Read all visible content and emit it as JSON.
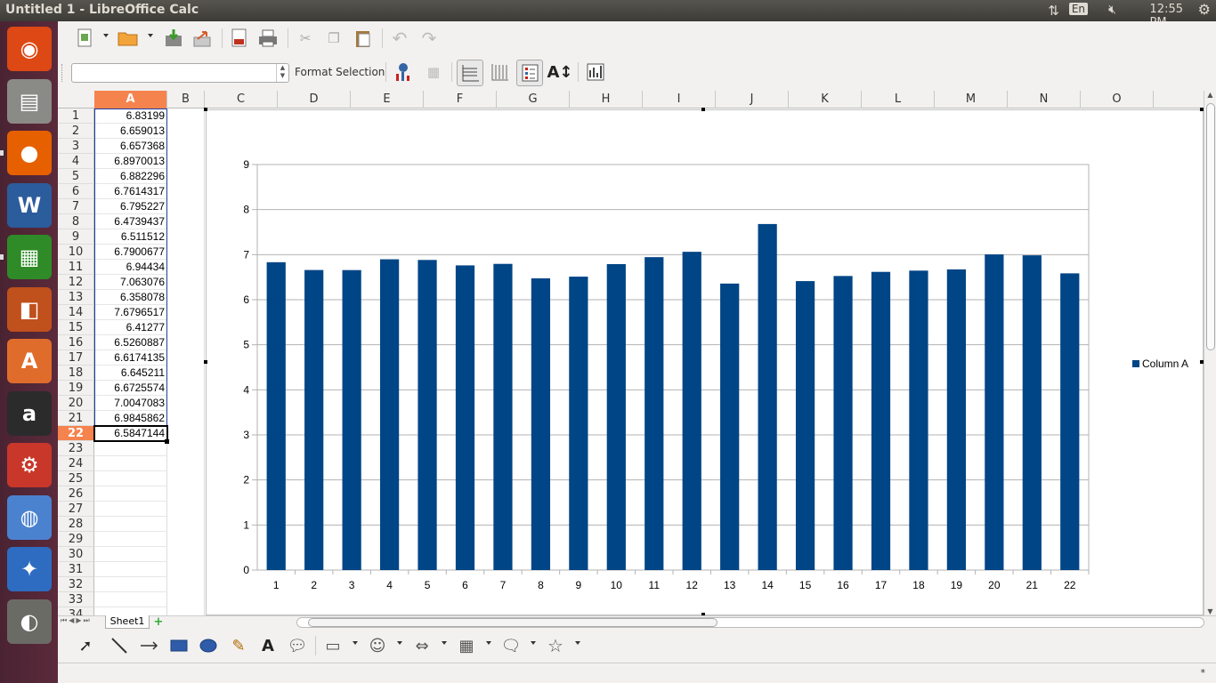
{
  "window": {
    "title": "Untitled 1 - LibreOffice Calc"
  },
  "tray": {
    "keyboard": "En",
    "time": "12:55 PM"
  },
  "launcher": {
    "items": [
      {
        "name": "dash-home",
        "glyph": "◉",
        "color": "#dd4814"
      },
      {
        "name": "files",
        "glyph": "▤",
        "color": "#8a8a86"
      },
      {
        "name": "firefox",
        "glyph": "●",
        "color": "#e66000"
      },
      {
        "name": "writer",
        "glyph": "W",
        "color": "#2b5c9c"
      },
      {
        "name": "calc",
        "glyph": "▦",
        "color": "#2e8b27"
      },
      {
        "name": "impress",
        "glyph": "◧",
        "color": "#c0501c"
      },
      {
        "name": "software-center",
        "glyph": "A",
        "color": "#e06c2c"
      },
      {
        "name": "amazon",
        "glyph": "a",
        "color": "#2b2b2b"
      },
      {
        "name": "system-settings",
        "glyph": "⚙",
        "color": "#c8372a"
      },
      {
        "name": "chromium",
        "glyph": "◍",
        "color": "#4b82d0"
      },
      {
        "name": "web-browser",
        "glyph": "✦",
        "color": "#2d6cc0"
      },
      {
        "name": "shotwell",
        "glyph": "◐",
        "color": "#6b6b66"
      }
    ]
  },
  "toolbar2": {
    "name_box": "",
    "format_selection": "Format Selection"
  },
  "sheet": {
    "columns": [
      "A",
      "B",
      "C",
      "D",
      "E",
      "F",
      "G",
      "H",
      "I",
      "J",
      "K",
      "L",
      "M",
      "N",
      "O"
    ],
    "rows": [
      "1",
      "2",
      "3",
      "4",
      "5",
      "6",
      "7",
      "8",
      "9",
      "10",
      "11",
      "12",
      "13",
      "14",
      "15",
      "16",
      "17",
      "18",
      "19",
      "20",
      "21",
      "22",
      "23",
      "24",
      "25",
      "26",
      "27",
      "28",
      "29",
      "30",
      "31",
      "32",
      "33",
      "34"
    ],
    "colA": [
      "6.83199",
      "6.659013",
      "6.657368",
      "6.8970013",
      "6.882296",
      "6.7614317",
      "6.795227",
      "6.4739437",
      "6.511512",
      "6.7900677",
      "6.94434",
      "7.063076",
      "6.358078",
      "7.6796517",
      "6.41277",
      "6.5260887",
      "6.6174135",
      "6.645211",
      "6.6725574",
      "7.0047083",
      "6.9845862",
      "6.5847144"
    ],
    "active_row": "22",
    "tab": "Sheet1"
  },
  "chart_data": {
    "type": "bar",
    "categories": [
      "1",
      "2",
      "3",
      "4",
      "5",
      "6",
      "7",
      "8",
      "9",
      "10",
      "11",
      "12",
      "13",
      "14",
      "15",
      "16",
      "17",
      "18",
      "19",
      "20",
      "21",
      "22"
    ],
    "series": [
      {
        "name": "Column A",
        "values": [
          6.83199,
          6.659013,
          6.657368,
          6.8970013,
          6.882296,
          6.7614317,
          6.795227,
          6.4739437,
          6.511512,
          6.7900677,
          6.94434,
          7.063076,
          6.358078,
          7.6796517,
          6.41277,
          6.5260887,
          6.6174135,
          6.645211,
          6.6725574,
          7.0047083,
          6.9845862,
          6.5847144
        ]
      }
    ],
    "ylim": [
      0,
      9
    ],
    "yticks": [
      "0",
      "1",
      "2",
      "3",
      "4",
      "5",
      "6",
      "7",
      "8",
      "9"
    ],
    "grid": true,
    "legend": "right",
    "color": "#004586"
  },
  "status": {
    "modified": "*"
  }
}
